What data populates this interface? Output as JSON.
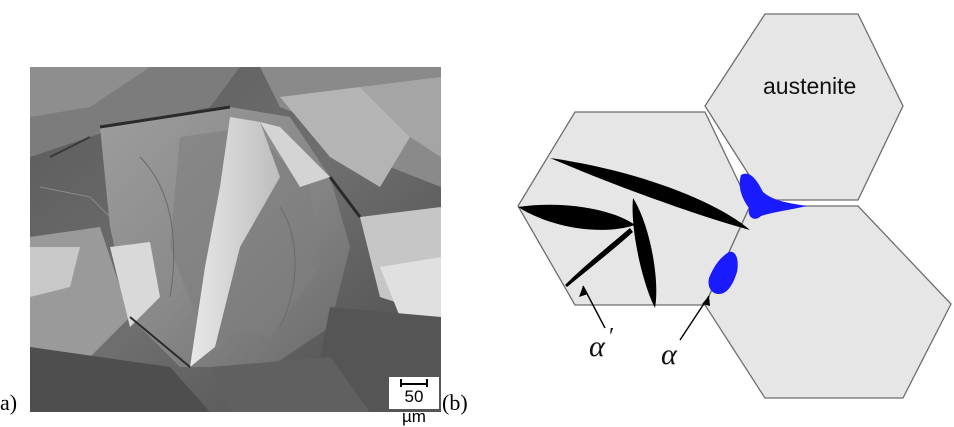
{
  "figure": {
    "panel_a_label": "a)",
    "panel_b_label": "(b)",
    "scalebar_text": "50 µm",
    "austenite_label": "austenite",
    "alpha_prime_symbol": "α",
    "alpha_prime_mark": "′",
    "alpha_symbol": "α",
    "colors": {
      "grain_fill": "#e6e6e6",
      "grain_edge": "#6e6e6e",
      "alpha_phase": "#1a1aff",
      "alpha_prime_phase": "#000000"
    }
  }
}
